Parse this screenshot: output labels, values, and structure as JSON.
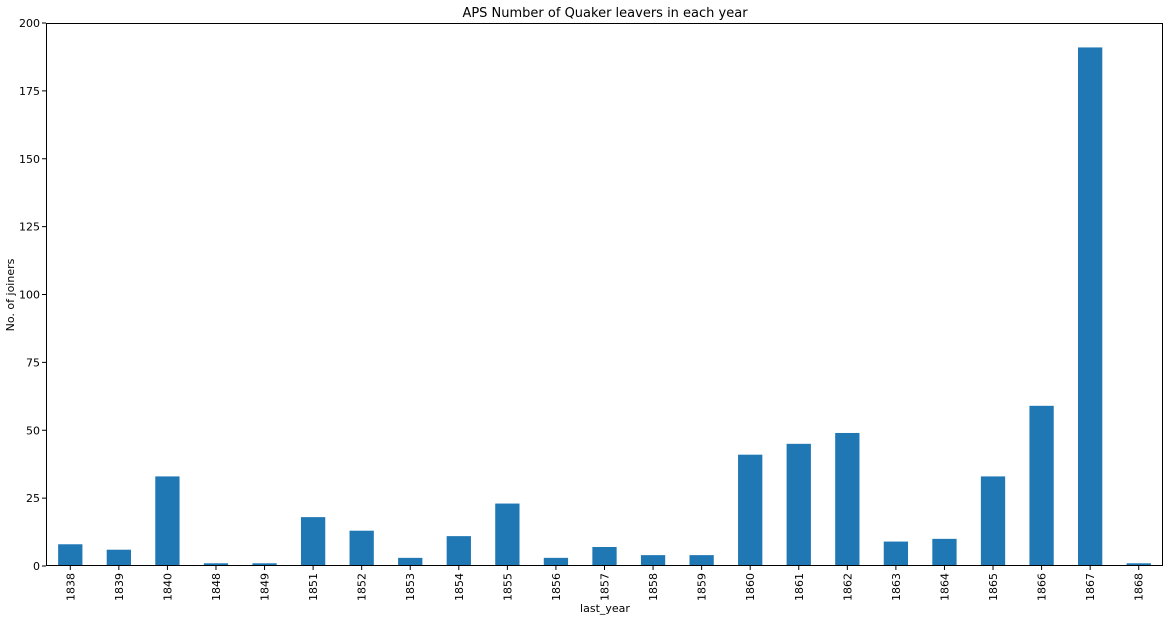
{
  "chart_data": {
    "type": "bar",
    "title": "APS Number of Quaker leavers in each year",
    "xlabel": "last_year",
    "ylabel": "No. of joiners",
    "categories": [
      "1838",
      "1839",
      "1840",
      "1848",
      "1849",
      "1851",
      "1852",
      "1853",
      "1854",
      "1855",
      "1856",
      "1857",
      "1858",
      "1859",
      "1860",
      "1861",
      "1862",
      "1863",
      "1864",
      "1865",
      "1866",
      "1867",
      "1868"
    ],
    "values": [
      8,
      6,
      33,
      1,
      1,
      18,
      13,
      3,
      11,
      23,
      3,
      7,
      4,
      4,
      41,
      45,
      49,
      9,
      10,
      33,
      59,
      191,
      1
    ],
    "ylim": [
      0,
      200
    ],
    "yticks": [
      0,
      25,
      50,
      75,
      100,
      125,
      150,
      175,
      200
    ],
    "grid": false,
    "legend": "none",
    "bar_color": "#1f77b4"
  }
}
